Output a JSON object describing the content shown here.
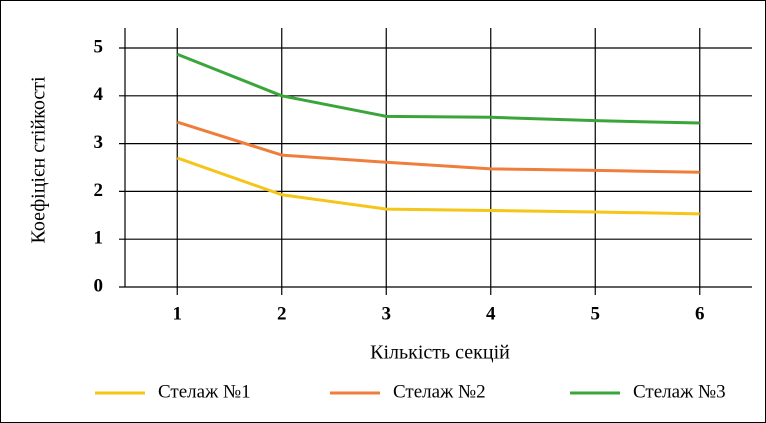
{
  "chart_data": {
    "type": "line",
    "xlabel": "Кількість секцій",
    "ylabel": "Коефіцієн  стійкості",
    "x": [
      1,
      2,
      3,
      4,
      5,
      6
    ],
    "xlim": [
      0.5,
      6.5
    ],
    "xticks": [
      1,
      2,
      3,
      4,
      5,
      6
    ],
    "ylim": [
      0,
      5
    ],
    "yticks": [
      0,
      1,
      2,
      3,
      4,
      5
    ],
    "grid": true,
    "legend": "bottom",
    "series": [
      {
        "name": "Стелаж №1",
        "color": "#f5c518",
        "values": [
          2.7,
          1.93,
          1.63,
          1.6,
          1.57,
          1.53
        ]
      },
      {
        "name": "Стелаж №2",
        "color": "#ef7d3c",
        "values": [
          3.45,
          2.76,
          2.61,
          2.47,
          2.44,
          2.4
        ]
      },
      {
        "name": "Стелаж №3",
        "color": "#3aa53a",
        "values": [
          4.87,
          4.0,
          3.57,
          3.55,
          3.48,
          3.43
        ]
      }
    ]
  }
}
